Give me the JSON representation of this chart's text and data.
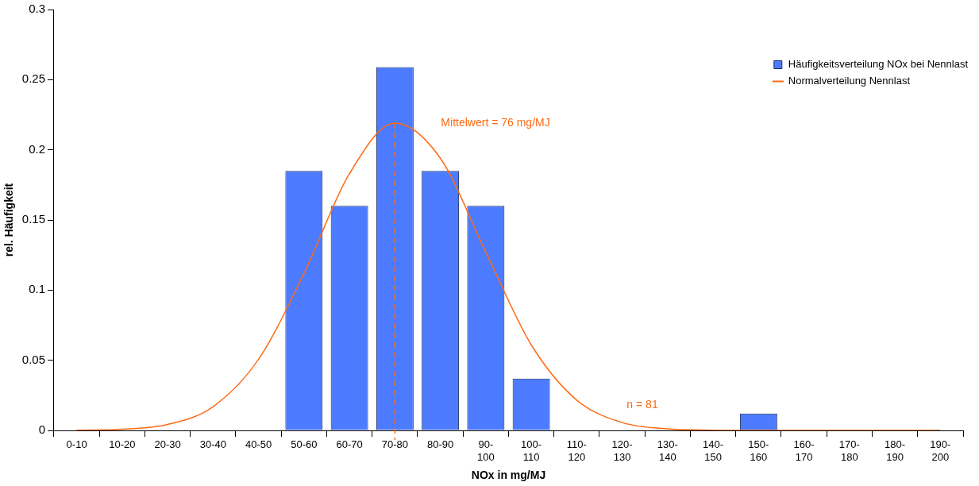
{
  "chart_data": {
    "type": "bar",
    "xlabel": "NOx in mg/MJ",
    "ylabel": "rel. Häufigkeit",
    "categories": [
      "0-10",
      "10-20",
      "20-30",
      "30-40",
      "40-50",
      "50-60",
      "60-70",
      "70-80",
      "80-90",
      "90-100",
      "100-110",
      "110-120",
      "120-130",
      "130-140",
      "140-150",
      "150-160",
      "160-170",
      "170-180",
      "180-190",
      "190-200"
    ],
    "ylim": [
      0,
      0.3
    ],
    "yticks": [
      0,
      0.05,
      0.1,
      0.15,
      0.2,
      0.25,
      0.3
    ],
    "grid": false,
    "legend": "top right",
    "series": [
      {
        "name": "Häufigkeitsverteilung NOx bei Nennlast",
        "color": "#4d7bff",
        "values": [
          0,
          0,
          0,
          0,
          0,
          0.185,
          0.16,
          0.259,
          0.185,
          0.16,
          0.037,
          0,
          0,
          0,
          0,
          0.012,
          0,
          0,
          0,
          0
        ]
      },
      {
        "name": "Normalverteilung Nennlast",
        "type": "line",
        "color": "#ff6a13",
        "marker": "none",
        "values": [
          0.0001,
          0.0008,
          0.0042,
          0.0169,
          0.0507,
          0.112,
          0.183,
          0.219,
          0.194,
          0.127,
          0.061,
          0.0216,
          0.0056,
          0.0011,
          0.0002,
          0,
          0,
          0,
          0,
          0
        ]
      }
    ],
    "ref_lines": [
      {
        "axis": "x",
        "value": "70-80",
        "label": "Mittelwert = 76 mg/MJ",
        "color": "#ff6a13",
        "line_style": "dashed"
      }
    ],
    "annotations": [
      "n = 81"
    ]
  }
}
